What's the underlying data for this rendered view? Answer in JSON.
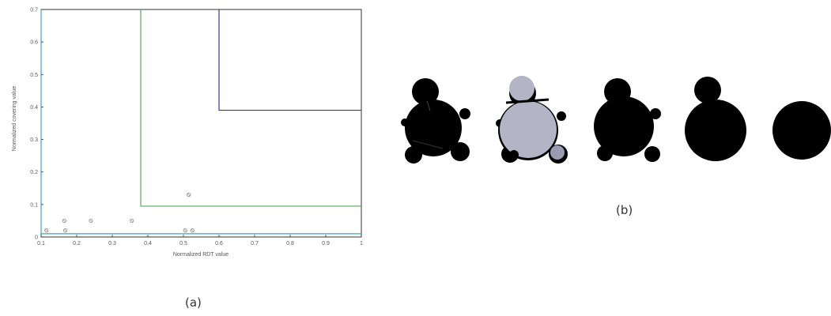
{
  "figure": {
    "caption_a": "(a)",
    "caption_b": "(b)"
  },
  "chart_data": {
    "type": "scatter",
    "xlabel": "Normalized RDT value",
    "ylabel": "Normalized covering value",
    "xlim": [
      0.1,
      1.0
    ],
    "ylim": [
      0.0,
      0.7
    ],
    "x_ticks": [
      "0.1",
      "0.2",
      "0.3",
      "0.4",
      "0.5",
      "0.6",
      "0.7",
      "0.8",
      "0.9",
      "1"
    ],
    "y_ticks": [
      "0",
      "0.1",
      "0.2",
      "0.3",
      "0.4",
      "0.5",
      "0.6",
      "0.7"
    ],
    "grid": false,
    "series": [
      {
        "points": [
          {
            "x": 0.115,
            "y": 0.02
          },
          {
            "x": 0.165,
            "y": 0.05
          },
          {
            "x": 0.168,
            "y": 0.02
          },
          {
            "x": 0.24,
            "y": 0.05
          },
          {
            "x": 0.355,
            "y": 0.05
          },
          {
            "x": 0.505,
            "y": 0.02
          },
          {
            "x": 0.515,
            "y": 0.13
          },
          {
            "x": 0.525,
            "y": 0.02
          }
        ]
      }
    ],
    "regions": [
      {
        "color": "#2f3c8f",
        "x_start": 0.6,
        "y_start": 0.39
      },
      {
        "color": "#5aa85a",
        "x_start": 0.38,
        "y_start": 0.095
      },
      {
        "color": "#3aa7c8",
        "x_start": 0.1,
        "y_start": 0.01
      }
    ],
    "colors": {
      "marker": "#888888",
      "axes": "#333333"
    }
  },
  "shapes": {
    "count": 5,
    "fill_dark": "#000000",
    "fill_light": "#b3b4c6"
  }
}
